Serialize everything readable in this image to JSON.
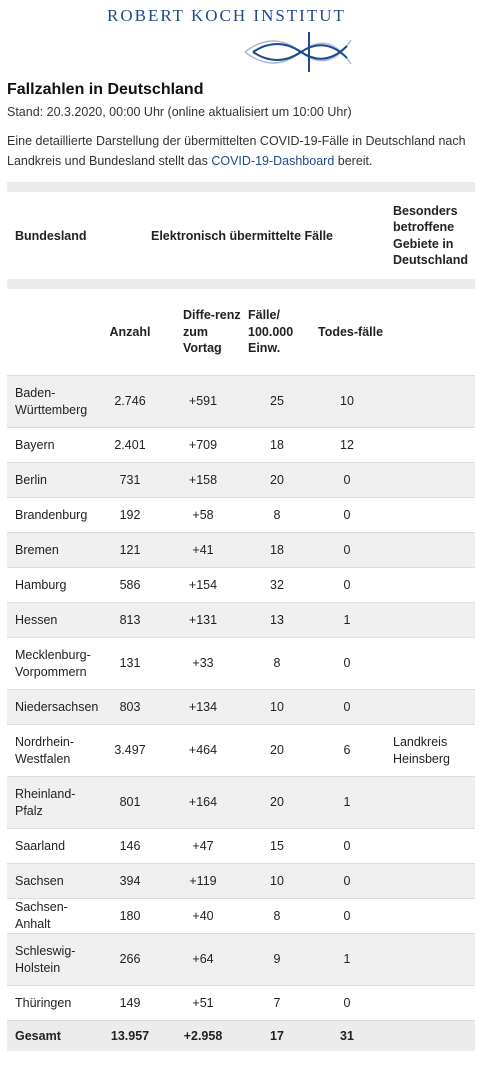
{
  "logo": {
    "text": "ROBERT KOCH INSTITUT",
    "icon": "rki-logo-mark",
    "color": "#1e4a8a"
  },
  "title": "Fallzahlen in Deutschland",
  "stand": "Stand: 20.3.2020, 00:00 Uhr (online aktualisiert um 10:00 Uhr)",
  "intro": {
    "before": "Eine detaillierte Darstellung der übermittelten COVID-19-Fälle in Deutschland nach Landkreis und Bundesland stellt das ",
    "link": "COVID-19-Dashboard",
    "after": " bereit."
  },
  "table": {
    "header1": {
      "bundesland": "Bundesland",
      "faelle": "Elektronisch übermittelte Fälle",
      "gebiete": "Besonders betroffene Gebiete in Deutschland"
    },
    "header2": {
      "anzahl": "Anzahl",
      "differenz": "Diffe-renz zum Vortag",
      "pro100k": "Fälle/ 100.000 Einw.",
      "todesfaelle": "Todes-fälle"
    },
    "rows": [
      {
        "land": "Baden-Württemberg",
        "anzahl": "2.746",
        "diff": "+591",
        "pro100k": "25",
        "tote": "10",
        "gebiet": ""
      },
      {
        "land": "Bayern",
        "anzahl": "2.401",
        "diff": "+709",
        "pro100k": "18",
        "tote": "12",
        "gebiet": ""
      },
      {
        "land": "Berlin",
        "anzahl": "731",
        "diff": "+158",
        "pro100k": "20",
        "tote": "0",
        "gebiet": ""
      },
      {
        "land": "Brandenburg",
        "anzahl": "192",
        "diff": "+58",
        "pro100k": "8",
        "tote": "0",
        "gebiet": ""
      },
      {
        "land": "Bremen",
        "anzahl": "121",
        "diff": "+41",
        "pro100k": "18",
        "tote": "0",
        "gebiet": ""
      },
      {
        "land": "Hamburg",
        "anzahl": "586",
        "diff": "+154",
        "pro100k": "32",
        "tote": "0",
        "gebiet": ""
      },
      {
        "land": "Hessen",
        "anzahl": "813",
        "diff": "+131",
        "pro100k": "13",
        "tote": "1",
        "gebiet": ""
      },
      {
        "land": "Mecklenburg-Vorpommern",
        "anzahl": "131",
        "diff": "+33",
        "pro100k": "8",
        "tote": "0",
        "gebiet": ""
      },
      {
        "land": "Niedersachsen",
        "anzahl": "803",
        "diff": "+134",
        "pro100k": "10",
        "tote": "0",
        "gebiet": ""
      },
      {
        "land": "Nordrhein-Westfalen",
        "anzahl": "3.497",
        "diff": "+464",
        "pro100k": "20",
        "tote": "6",
        "gebiet": "Landkreis Heinsberg"
      },
      {
        "land": "Rheinland-Pfalz",
        "anzahl": "801",
        "diff": "+164",
        "pro100k": "20",
        "tote": "1",
        "gebiet": ""
      },
      {
        "land": "Saarland",
        "anzahl": "146",
        "diff": "+47",
        "pro100k": "15",
        "tote": "0",
        "gebiet": ""
      },
      {
        "land": "Sachsen",
        "anzahl": "394",
        "diff": "+119",
        "pro100k": "10",
        "tote": "0",
        "gebiet": ""
      },
      {
        "land": "Sachsen-Anhalt",
        "anzahl": "180",
        "diff": "+40",
        "pro100k": "8",
        "tote": "0",
        "gebiet": ""
      },
      {
        "land": "Schleswig-Holstein",
        "anzahl": "266",
        "diff": "+64",
        "pro100k": "9",
        "tote": "1",
        "gebiet": ""
      },
      {
        "land": "Thüringen",
        "anzahl": "149",
        "diff": "+51",
        "pro100k": "7",
        "tote": "0",
        "gebiet": ""
      }
    ],
    "total": {
      "label": "Gesamt",
      "anzahl": "13.957",
      "diff": "+2.958",
      "pro100k": "17",
      "tote": "31"
    }
  }
}
